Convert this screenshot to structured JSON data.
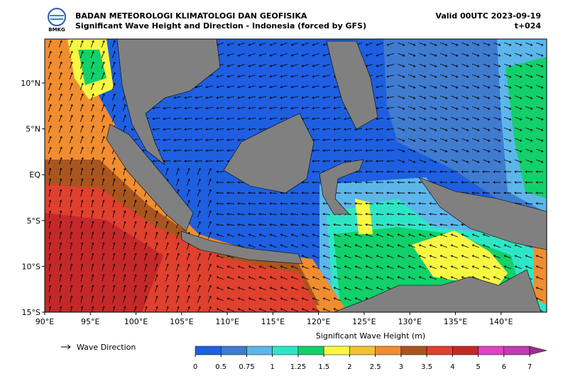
{
  "header": {
    "logo_text": "BMKG",
    "agency": "BADAN METEOROLOGI KLIMATOLOGI DAN GEOFISIKA",
    "product": "Significant Wave Height and Direction - Indonesia (forced by GFS)",
    "valid": "Valid 00UTC 2023-09-19",
    "lead": "t+024"
  },
  "map": {
    "lonlim": [
      90,
      145
    ],
    "latlim": [
      -15,
      14.8
    ],
    "lon_ticks": [
      {
        "value": 90,
        "label": "90°E"
      },
      {
        "value": 95,
        "label": "95°E"
      },
      {
        "value": 100,
        "label": "100°E"
      },
      {
        "value": 105,
        "label": "105°E"
      },
      {
        "value": 110,
        "label": "110°E"
      },
      {
        "value": 115,
        "label": "115°E"
      },
      {
        "value": 120,
        "label": "120°E"
      },
      {
        "value": 125,
        "label": "125°E"
      },
      {
        "value": 130,
        "label": "130°E"
      },
      {
        "value": 135,
        "label": "135°E"
      },
      {
        "value": 140,
        "label": "140°E"
      }
    ],
    "lat_ticks": [
      {
        "value": 10,
        "label": "10°N"
      },
      {
        "value": 5,
        "label": "5°N"
      },
      {
        "value": 0,
        "label": "EQ"
      },
      {
        "value": -5,
        "label": "5°S"
      },
      {
        "value": -10,
        "label": "10°S"
      },
      {
        "value": -15,
        "label": "15°S"
      }
    ]
  },
  "legend": {
    "direction": "Wave Direction"
  },
  "colorbar": {
    "title": "Significant Wave Height (m)",
    "ticks": [
      0,
      0.5,
      0.75,
      1,
      1.25,
      1.5,
      2,
      2.5,
      3,
      3.5,
      4,
      5,
      6,
      7
    ],
    "colors": [
      "#1d5fe0",
      "#3f7ccf",
      "#5cb6ea",
      "#2ee6c6",
      "#12d06a",
      "#f8f843",
      "#f3c232",
      "#ef8d30",
      "#a9551f",
      "#e0402e",
      "#c52828",
      "#e042c2",
      "#c13cb0",
      "#9c2f8e"
    ]
  }
}
